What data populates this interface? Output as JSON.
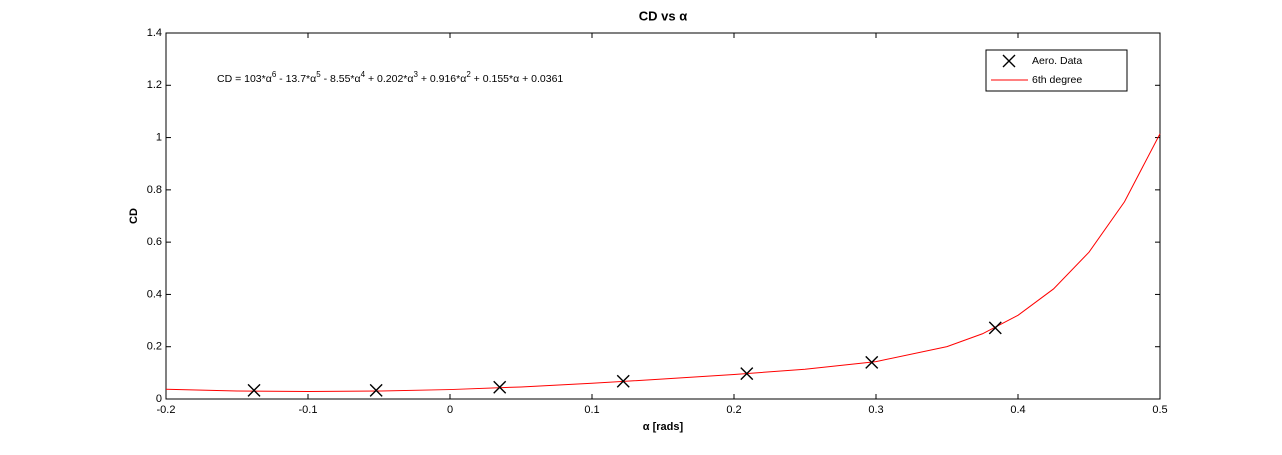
{
  "chart_data": {
    "type": "line",
    "title": "CD vs α",
    "xlabel": "α [rads]",
    "ylabel": "CD",
    "annotation": [
      {
        "text": "CD = 103*α",
        "sup": "6"
      },
      {
        "text": " - 13.7*α",
        "sup": "5"
      },
      {
        "text": " - 8.55*α",
        "sup": "4"
      },
      {
        "text": " + 0.202*α",
        "sup": "3"
      },
      {
        "text": " + 0.916*α",
        "sup": "2"
      },
      {
        "text": " + 0.155*α + 0.0361"
      }
    ],
    "xlim": [
      -0.2,
      0.5
    ],
    "xticks": [
      -0.2,
      -0.1,
      0,
      0.1,
      0.2,
      0.3,
      0.4,
      0.5
    ],
    "ylim": [
      0,
      1.4
    ],
    "yticks": [
      0,
      0.2,
      0.4,
      0.6,
      0.8,
      1,
      1.2,
      1.4
    ],
    "grid": false,
    "legend": "upper right",
    "series": [
      {
        "name": "Aero. Data",
        "type": "scatter",
        "marker": "x",
        "color": "#000000",
        "x": [
          -0.138,
          -0.052,
          0.035,
          0.122,
          0.209,
          0.297,
          0.384
        ],
        "values": [
          0.033,
          0.033,
          0.045,
          0.068,
          0.097,
          0.14,
          0.272
        ]
      },
      {
        "name": "6th degree",
        "type": "line",
        "color": "#ff0000",
        "x": [
          -0.2,
          -0.15,
          -0.1,
          -0.05,
          0,
          0.05,
          0.1,
          0.15,
          0.2,
          0.25,
          0.3,
          0.35,
          0.375,
          0.4,
          0.425,
          0.45,
          0.475,
          0.5
        ],
        "values": [
          0.0374,
          0.0307,
          0.0289,
          0.0306,
          0.0361,
          0.0461,
          0.0601,
          0.0764,
          0.0939,
          0.1136,
          0.143,
          0.2003,
          0.2495,
          0.3203,
          0.421,
          0.5616,
          0.7546,
          1.0147
        ]
      }
    ]
  }
}
